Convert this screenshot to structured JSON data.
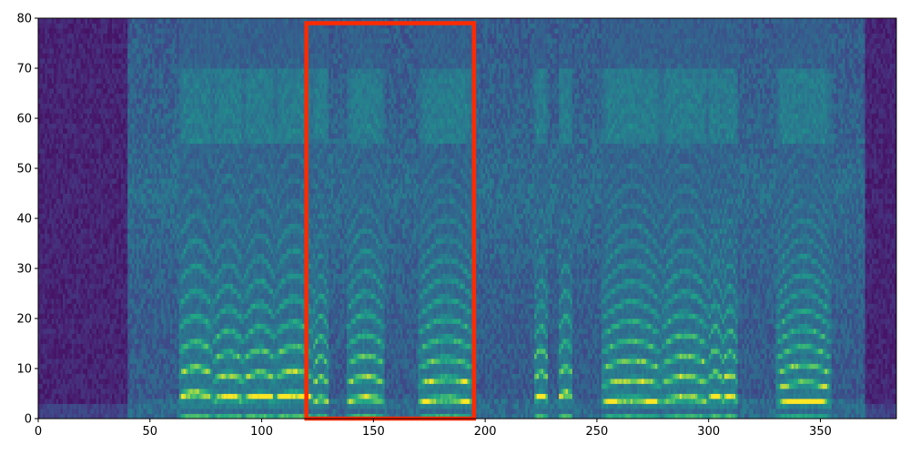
{
  "chart_data": {
    "type": "heatmap",
    "title": "",
    "xlabel": "",
    "ylabel": "",
    "xlim": [
      0,
      384
    ],
    "ylim": [
      0,
      80
    ],
    "colormap": "viridis",
    "x_ticks": [
      0,
      50,
      100,
      150,
      200,
      250,
      300,
      350
    ],
    "y_ticks": [
      0,
      10,
      20,
      30,
      40,
      50,
      60,
      70,
      80
    ],
    "x_tick_labels": [
      "0",
      "50",
      "100",
      "150",
      "200",
      "250",
      "300",
      "350"
    ],
    "y_tick_labels": [
      "0",
      "10",
      "20",
      "30",
      "40",
      "50",
      "60",
      "70",
      "80"
    ],
    "highlight_box": {
      "x0": 120,
      "x1": 195,
      "y0": 0,
      "y1": 79,
      "color": "#ff2a00"
    },
    "segments": [
      {
        "x0": 0,
        "x1": 40,
        "kind": "silence"
      },
      {
        "x0": 40,
        "x1": 63,
        "kind": "noise"
      },
      {
        "x0": 63,
        "x1": 78,
        "kind": "voiced",
        "f0": 4.5
      },
      {
        "x0": 78,
        "x1": 92,
        "kind": "voiced",
        "f0": 3.8
      },
      {
        "x0": 92,
        "x1": 106,
        "kind": "voiced",
        "f0": 4.0
      },
      {
        "x0": 106,
        "x1": 123,
        "kind": "voiced",
        "f0": 4.2
      },
      {
        "x0": 123,
        "x1": 130,
        "kind": "voiced",
        "f0": 3.5
      },
      {
        "x0": 130,
        "x1": 138,
        "kind": "noise"
      },
      {
        "x0": 138,
        "x1": 155,
        "kind": "voiced",
        "f0": 3.6
      },
      {
        "x0": 155,
        "x1": 170,
        "kind": "noise"
      },
      {
        "x0": 170,
        "x1": 195,
        "kind": "voiced",
        "f0": 3.4
      },
      {
        "x0": 195,
        "x1": 222,
        "kind": "noise"
      },
      {
        "x0": 222,
        "x1": 228,
        "kind": "voiced",
        "f0": 4.0
      },
      {
        "x0": 228,
        "x1": 233,
        "kind": "noise"
      },
      {
        "x0": 233,
        "x1": 239,
        "kind": "voiced",
        "f0": 4.5
      },
      {
        "x0": 239,
        "x1": 252,
        "kind": "noise"
      },
      {
        "x0": 252,
        "x1": 279,
        "kind": "voiced",
        "f0": 3.3
      },
      {
        "x0": 279,
        "x1": 300,
        "kind": "voiced",
        "f0": 3.6
      },
      {
        "x0": 300,
        "x1": 306,
        "kind": "voiced",
        "f0": 4.0
      },
      {
        "x0": 306,
        "x1": 313,
        "kind": "voiced",
        "f0": 3.8
      },
      {
        "x0": 313,
        "x1": 330,
        "kind": "noise"
      },
      {
        "x0": 330,
        "x1": 355,
        "kind": "voiced",
        "f0": 3.0
      },
      {
        "x0": 355,
        "x1": 370,
        "kind": "noise"
      },
      {
        "x0": 370,
        "x1": 384,
        "kind": "silence"
      }
    ]
  }
}
